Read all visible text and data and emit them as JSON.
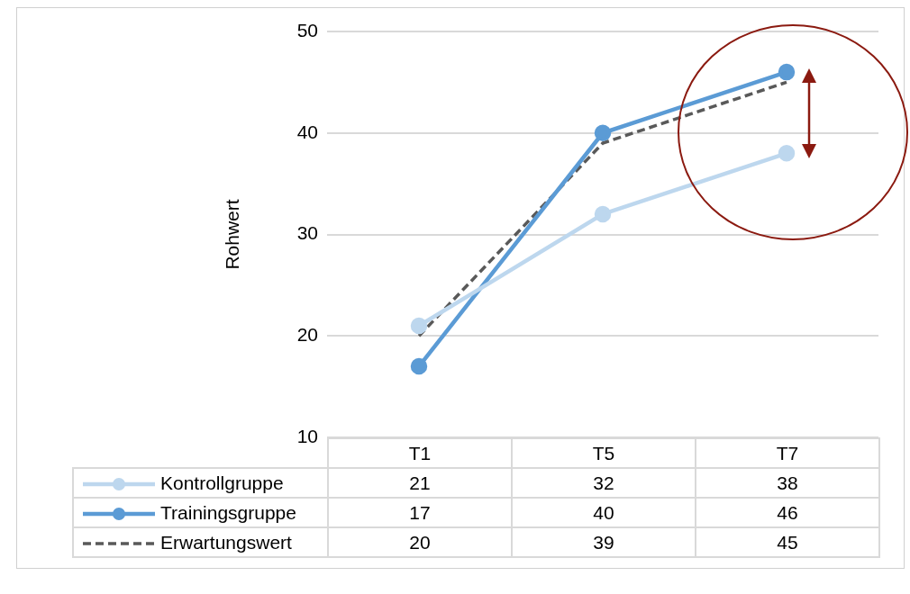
{
  "chart_data": {
    "type": "line",
    "ylabel": "Rohwert",
    "categories": [
      "T1",
      "T5",
      "T7"
    ],
    "series": [
      {
        "name": "Kontrollgruppe",
        "color": "#bdd7ee",
        "values": [
          21,
          32,
          38
        ],
        "marker": "circle"
      },
      {
        "name": "Trainingsgruppe",
        "color": "#5b9bd5",
        "values": [
          17,
          40,
          46
        ],
        "marker": "circle"
      },
      {
        "name": "Erwartungswert",
        "color": "#595959",
        "values": [
          20,
          39,
          45
        ],
        "marker": "none",
        "line_style": "dashed"
      }
    ],
    "ylim": [
      10,
      50
    ],
    "yticks": [
      10,
      20,
      30,
      40,
      50
    ],
    "grid": "y",
    "legend": "bottom",
    "data_labels": true
  }
}
